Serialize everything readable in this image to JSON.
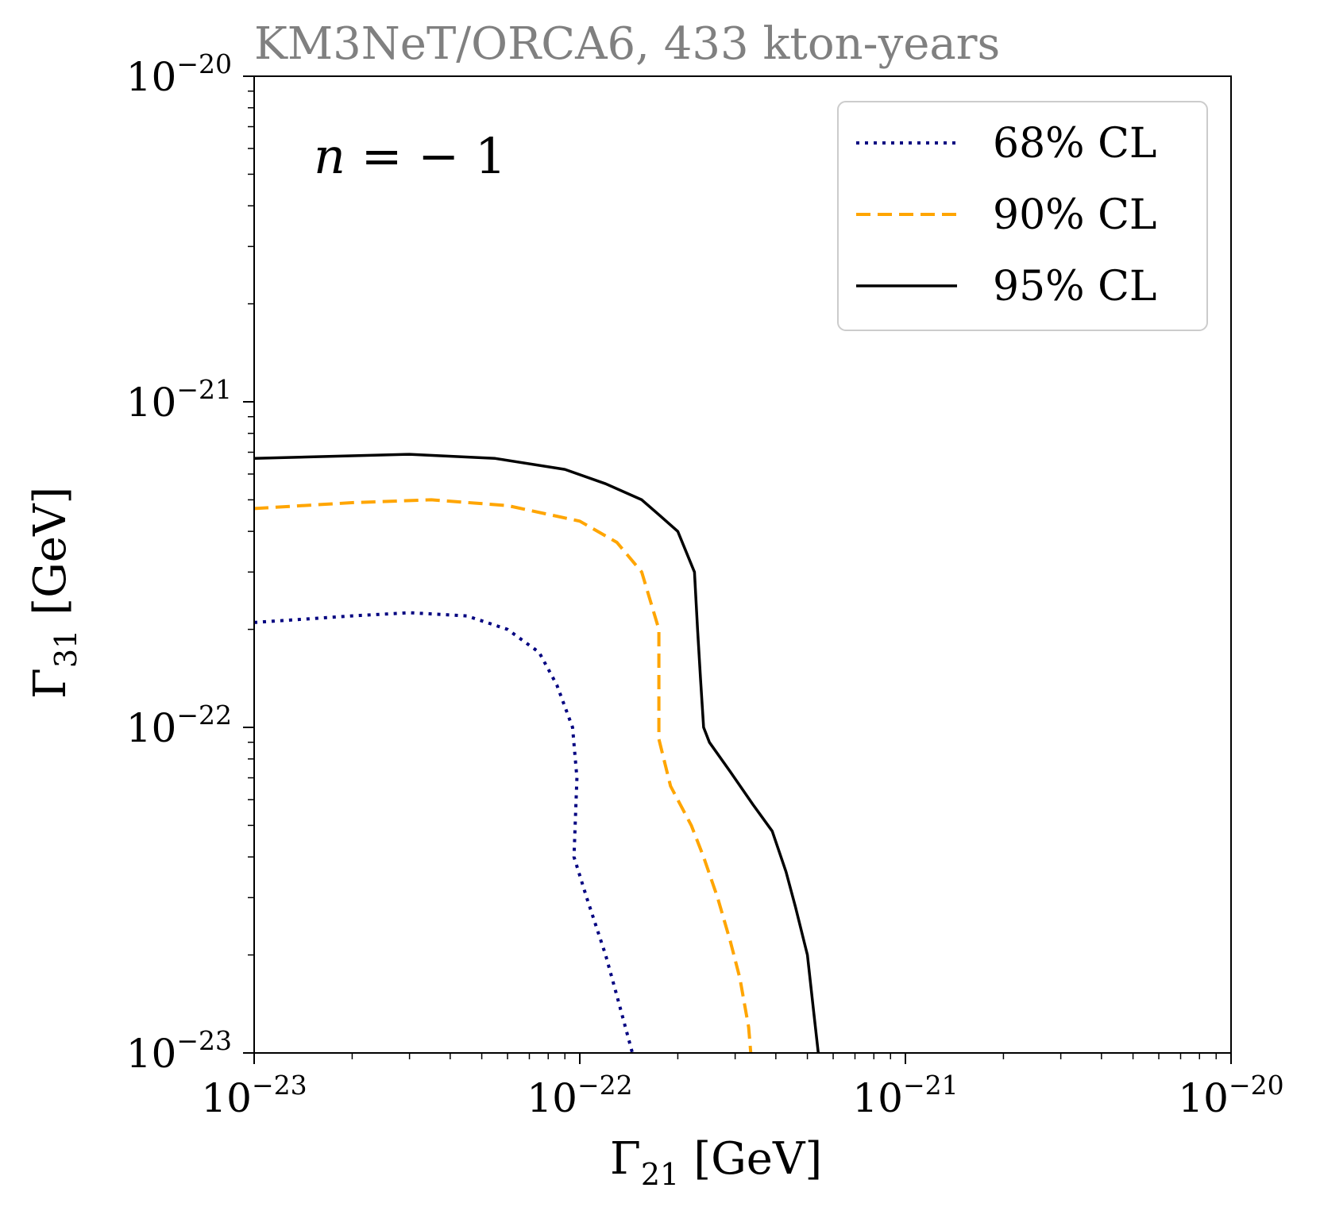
{
  "chart_data": {
    "type": "line",
    "title": "KM3NeT/ORCA6, 433 kton-years",
    "xlabel": {
      "symbol": "Γ",
      "subscript": "21",
      "unit": "[GeV]"
    },
    "ylabel": {
      "symbol": "Γ",
      "subscript": "31",
      "unit": "[GeV]"
    },
    "xscale": "log",
    "yscale": "log",
    "xlim": [
      1e-23,
      1e-20
    ],
    "ylim": [
      1e-23,
      1e-20
    ],
    "x_ticks": [
      {
        "value": 1e-23,
        "base": "10",
        "exp": "−23"
      },
      {
        "value": 1e-22,
        "base": "10",
        "exp": "−22"
      },
      {
        "value": 1e-21,
        "base": "10",
        "exp": "−21"
      },
      {
        "value": 1e-20,
        "base": "10",
        "exp": "−20"
      }
    ],
    "y_ticks": [
      {
        "value": 1e-23,
        "base": "10",
        "exp": "−23"
      },
      {
        "value": 1e-22,
        "base": "10",
        "exp": "−22"
      },
      {
        "value": 1e-21,
        "base": "10",
        "exp": "−21"
      },
      {
        "value": 1e-20,
        "base": "10",
        "exp": "−20"
      }
    ],
    "annotation": {
      "var": "n",
      "rest": " = − 1"
    },
    "legend_position": "top-right",
    "series": [
      {
        "name": "68% CL",
        "color": "#000080",
        "style": "dotted",
        "points": [
          [
            1e-23,
            2.1e-22
          ],
          [
            2e-23,
            2.2e-22
          ],
          [
            3e-23,
            2.25e-22
          ],
          [
            4.5e-23,
            2.2e-22
          ],
          [
            6e-23,
            2e-22
          ],
          [
            7.5e-23,
            1.7e-22
          ],
          [
            8.5e-23,
            1.35e-22
          ],
          [
            9.5e-23,
            1e-22
          ],
          [
            9.8e-23,
            7e-23
          ],
          [
            9.6e-23,
            4e-23
          ],
          [
            1.05e-22,
            3e-23
          ],
          [
            1.2e-22,
            2e-23
          ],
          [
            1.3e-22,
            1.5e-23
          ],
          [
            1.45e-22,
            1e-23
          ]
        ]
      },
      {
        "name": "90% CL",
        "color": "#ffa500",
        "style": "dashed",
        "points": [
          [
            1e-23,
            4.7e-22
          ],
          [
            2e-23,
            4.9e-22
          ],
          [
            3.5e-23,
            5e-22
          ],
          [
            6e-23,
            4.8e-22
          ],
          [
            1e-22,
            4.3e-22
          ],
          [
            1.3e-22,
            3.7e-22
          ],
          [
            1.55e-22,
            3e-22
          ],
          [
            1.75e-22,
            2e-22
          ],
          [
            1.75e-22,
            9.2e-23
          ],
          [
            1.9e-22,
            6.6e-23
          ],
          [
            2.2e-22,
            5e-23
          ],
          [
            2.4e-22,
            4e-23
          ],
          [
            2.65e-22,
            3e-23
          ],
          [
            2.9e-22,
            2.2e-23
          ],
          [
            3.1e-22,
            1.7e-23
          ],
          [
            3.3e-22,
            1.2e-23
          ],
          [
            3.35e-22,
            1e-23
          ]
        ]
      },
      {
        "name": "95% CL",
        "color": "#000000",
        "style": "solid",
        "points": [
          [
            1e-23,
            6.7e-22
          ],
          [
            3e-23,
            6.9e-22
          ],
          [
            5.5e-23,
            6.7e-22
          ],
          [
            9e-23,
            6.2e-22
          ],
          [
            1.2e-22,
            5.6e-22
          ],
          [
            1.55e-22,
            5e-22
          ],
          [
            1.75e-22,
            4.5e-22
          ],
          [
            2e-22,
            4e-22
          ],
          [
            2.25e-22,
            3e-22
          ],
          [
            2.3e-22,
            2e-22
          ],
          [
            2.35e-22,
            1.4e-22
          ],
          [
            2.4e-22,
            1e-22
          ],
          [
            2.5e-22,
            9e-23
          ],
          [
            2.9e-22,
            7.3e-23
          ],
          [
            3.4e-22,
            5.8e-23
          ],
          [
            3.9e-22,
            4.8e-23
          ],
          [
            4.3e-22,
            3.6e-23
          ],
          [
            4.6e-22,
            2.8e-23
          ],
          [
            5e-22,
            2e-23
          ],
          [
            5.2e-22,
            1.4e-23
          ],
          [
            5.4e-22,
            1e-23
          ]
        ]
      }
    ]
  }
}
